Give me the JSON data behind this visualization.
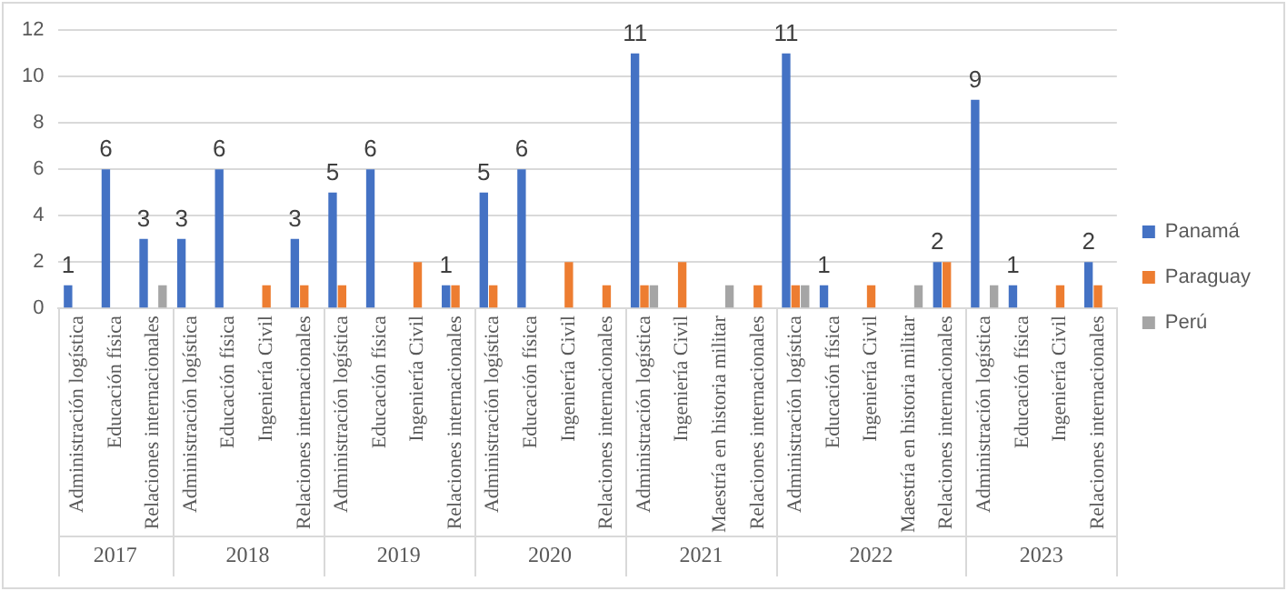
{
  "chart_data": {
    "type": "bar",
    "categories": [
      "Administración logística",
      "Educación física",
      "Relaciones internacionales",
      "Administración logística",
      "Educación física",
      "Ingeniería Civil",
      "Relaciones internacionales",
      "Administración logística",
      "Educación física",
      "Ingeniería Civil",
      "Relaciones internacionales",
      "Administración logística",
      "Educación física",
      "Ingeniería Civil",
      "Relaciones internacionales",
      "Administración logística",
      "Ingeniería Civil",
      "Maestría en historia militar",
      "Relaciones internacionales",
      "Administración logística",
      "Educación física",
      "Ingeniería Civil",
      "Maestría en historia militar",
      "Relaciones internacionales",
      "Administración logística",
      "Educación física",
      "Ingeniería Civil",
      "Relaciones internacionales"
    ],
    "series": [
      {
        "name": "Panamá",
        "color": "#4472c4",
        "values": [
          1,
          6,
          3,
          3,
          6,
          null,
          3,
          5,
          6,
          null,
          1,
          5,
          6,
          null,
          null,
          11,
          null,
          null,
          null,
          11,
          1,
          null,
          null,
          2,
          9,
          1,
          null,
          2
        ],
        "value_labels": [
          "1",
          "6",
          "3",
          "3",
          "6",
          null,
          "3",
          "5",
          "6",
          null,
          "1",
          "5",
          "6",
          null,
          null,
          "11",
          null,
          null,
          null,
          "11",
          "1",
          null,
          null,
          "2",
          "9",
          "1",
          null,
          "2"
        ]
      },
      {
        "name": "Paraguay",
        "color": "#ed7d31",
        "values": [
          null,
          null,
          null,
          null,
          null,
          1,
          1,
          1,
          null,
          2,
          1,
          1,
          null,
          2,
          1,
          1,
          2,
          null,
          1,
          1,
          null,
          1,
          null,
          2,
          null,
          null,
          1,
          1
        ]
      },
      {
        "name": "Perú",
        "color": "#a5a5a5",
        "values": [
          null,
          null,
          1,
          null,
          null,
          null,
          null,
          null,
          null,
          null,
          null,
          null,
          null,
          null,
          null,
          1,
          null,
          1,
          null,
          1,
          null,
          null,
          1,
          null,
          1,
          null,
          null,
          null
        ]
      }
    ],
    "annotations": [
      "2017",
      "2018",
      "2019",
      "2020",
      "2021",
      "2022",
      "2023"
    ],
    "ylim": [
      0,
      12
    ],
    "yticks": [
      0,
      2,
      4,
      6,
      8,
      10,
      12
    ],
    "grid": "y",
    "legend": "right"
  }
}
